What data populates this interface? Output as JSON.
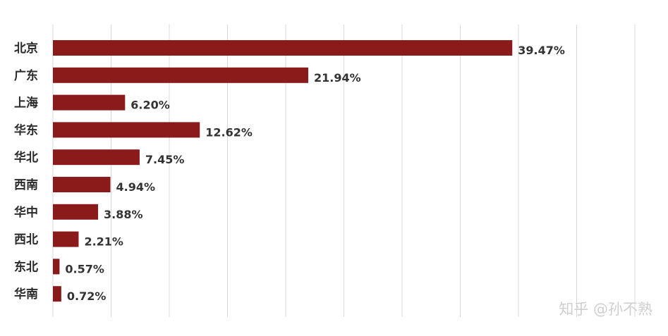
{
  "chart_data": {
    "type": "bar",
    "orientation": "horizontal",
    "categories": [
      "北京",
      "广东",
      "上海",
      "华东",
      "华北",
      "西南",
      "华中",
      "西北",
      "东北",
      "华南"
    ],
    "values": [
      39.47,
      21.94,
      6.2,
      12.62,
      7.45,
      4.94,
      3.88,
      2.21,
      0.57,
      0.72
    ],
    "value_labels": [
      "39.47%",
      "21.94%",
      "6.20%",
      "12.62%",
      "7.45%",
      "4.94%",
      "3.88%",
      "2.21%",
      "0.57%",
      "0.72%"
    ],
    "title": "",
    "xlabel": "",
    "ylabel": "",
    "xlim": [
      0,
      50
    ],
    "grid": true,
    "legend": "none",
    "bar_color": "#8b1a1a",
    "grid_color": "#d9d9d9"
  },
  "watermark": "知乎 @孙不熟"
}
